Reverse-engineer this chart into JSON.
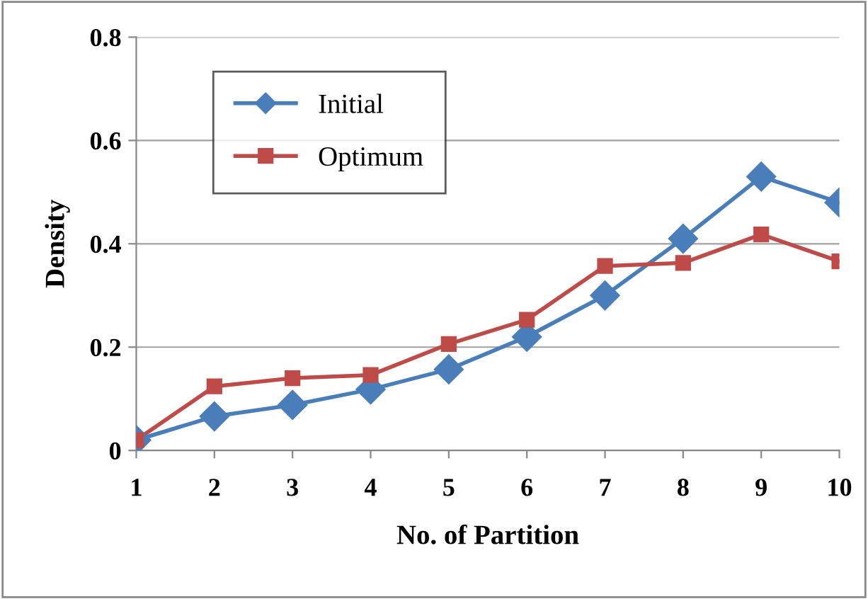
{
  "chart_data": {
    "type": "line",
    "xlabel": "No. of Partition",
    "ylabel": "Density",
    "categories": [
      "1",
      "2",
      "3",
      "4",
      "5",
      "6",
      "7",
      "8",
      "9",
      "10"
    ],
    "series": [
      {
        "name": "Initial",
        "color": "#4a7ebb",
        "marker": "diamond",
        "values": [
          0.02,
          0.066,
          0.088,
          0.118,
          0.157,
          0.22,
          0.3,
          0.41,
          0.53,
          0.48
        ]
      },
      {
        "name": "Optimum",
        "color": "#be4b48",
        "marker": "square",
        "values": [
          0.02,
          0.124,
          0.14,
          0.146,
          0.206,
          0.253,
          0.357,
          0.363,
          0.418,
          0.366
        ]
      }
    ],
    "ylim": [
      0,
      0.8
    ],
    "yticks": [
      {
        "value": 0,
        "label": "0"
      },
      0.2,
      0.4,
      0.6,
      0.8
    ],
    "grid": "y",
    "legend": "top left",
    "line_style": "solid"
  }
}
